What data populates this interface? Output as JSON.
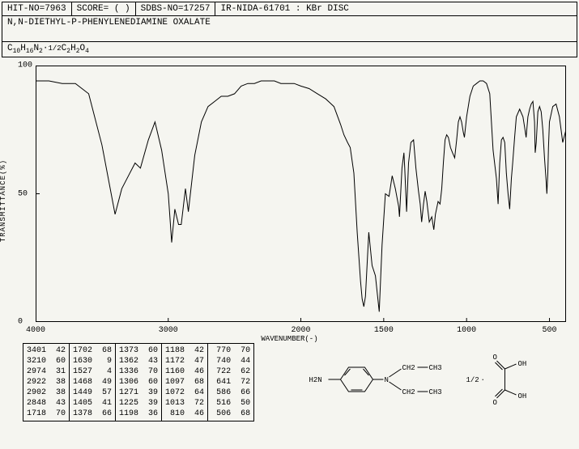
{
  "header": {
    "hit_no": "HIT-NO=7963",
    "score": "SCORE=  (  )",
    "sdbs_no": "SDBS-NO=17257",
    "ir_id": "IR-NIDA-61701 : KBr DISC"
  },
  "compound_name": "N,N-DIETHYL-P-PHENYLENEDIAMINE OXALATE",
  "formula_display": "C10H16N2·1/2C2H2O4",
  "chart": {
    "type": "line",
    "title": "",
    "xlabel": "WAVENUMBER(-)",
    "ylabel": "TRANSMITTANCE(%)",
    "xlim": [
      4000,
      400
    ],
    "ylim": [
      0,
      100
    ],
    "xticks": [
      4000,
      3000,
      2000,
      1500,
      1000,
      500
    ],
    "yticks": [
      0,
      50,
      100
    ],
    "line_color": "#000000",
    "background_color": "#f5f5f0",
    "border_color": "#000000",
    "grid": false,
    "label_fontsize": 9,
    "tick_fontsize": 10,
    "data_xy": [
      [
        4000,
        94
      ],
      [
        3900,
        94
      ],
      [
        3800,
        93
      ],
      [
        3700,
        93
      ],
      [
        3600,
        89
      ],
      [
        3500,
        69
      ],
      [
        3401,
        42
      ],
      [
        3350,
        52
      ],
      [
        3300,
        57
      ],
      [
        3250,
        62
      ],
      [
        3210,
        60
      ],
      [
        3150,
        71
      ],
      [
        3100,
        78
      ],
      [
        3050,
        67
      ],
      [
        3000,
        50
      ],
      [
        2974,
        31
      ],
      [
        2950,
        44
      ],
      [
        2922,
        38
      ],
      [
        2902,
        38
      ],
      [
        2870,
        52
      ],
      [
        2848,
        43
      ],
      [
        2800,
        65
      ],
      [
        2750,
        78
      ],
      [
        2700,
        84
      ],
      [
        2650,
        86
      ],
      [
        2600,
        88
      ],
      [
        2550,
        88
      ],
      [
        2500,
        89
      ],
      [
        2450,
        92
      ],
      [
        2400,
        93
      ],
      [
        2350,
        93
      ],
      [
        2300,
        94
      ],
      [
        2250,
        94
      ],
      [
        2200,
        94
      ],
      [
        2150,
        93
      ],
      [
        2100,
        93
      ],
      [
        2050,
        93
      ],
      [
        2000,
        92
      ],
      [
        1950,
        91
      ],
      [
        1900,
        89
      ],
      [
        1850,
        87
      ],
      [
        1800,
        84
      ],
      [
        1760,
        77
      ],
      [
        1740,
        73
      ],
      [
        1718,
        70
      ],
      [
        1702,
        68
      ],
      [
        1680,
        58
      ],
      [
        1660,
        35
      ],
      [
        1640,
        16
      ],
      [
        1630,
        9
      ],
      [
        1620,
        6
      ],
      [
        1610,
        10
      ],
      [
        1590,
        35
      ],
      [
        1570,
        22
      ],
      [
        1550,
        18
      ],
      [
        1527,
        4
      ],
      [
        1510,
        30
      ],
      [
        1490,
        50
      ],
      [
        1468,
        49
      ],
      [
        1449,
        57
      ],
      [
        1430,
        52
      ],
      [
        1410,
        45
      ],
      [
        1405,
        41
      ],
      [
        1390,
        60
      ],
      [
        1378,
        66
      ],
      [
        1373,
        60
      ],
      [
        1362,
        43
      ],
      [
        1350,
        62
      ],
      [
        1336,
        70
      ],
      [
        1320,
        71
      ],
      [
        1306,
        60
      ],
      [
        1290,
        51
      ],
      [
        1280,
        46
      ],
      [
        1271,
        39
      ],
      [
        1260,
        46
      ],
      [
        1250,
        51
      ],
      [
        1240,
        47
      ],
      [
        1225,
        39
      ],
      [
        1210,
        41
      ],
      [
        1198,
        36
      ],
      [
        1188,
        42
      ],
      [
        1172,
        47
      ],
      [
        1160,
        46
      ],
      [
        1150,
        52
      ],
      [
        1140,
        62
      ],
      [
        1130,
        71
      ],
      [
        1120,
        73
      ],
      [
        1110,
        72
      ],
      [
        1097,
        68
      ],
      [
        1085,
        66
      ],
      [
        1072,
        64
      ],
      [
        1060,
        71
      ],
      [
        1050,
        78
      ],
      [
        1040,
        80
      ],
      [
        1030,
        78
      ],
      [
        1020,
        74
      ],
      [
        1013,
        72
      ],
      [
        1000,
        80
      ],
      [
        980,
        88
      ],
      [
        960,
        92
      ],
      [
        940,
        93
      ],
      [
        920,
        94
      ],
      [
        900,
        94
      ],
      [
        880,
        93
      ],
      [
        860,
        89
      ],
      [
        840,
        67
      ],
      [
        820,
        56
      ],
      [
        810,
        46
      ],
      [
        800,
        62
      ],
      [
        790,
        71
      ],
      [
        780,
        72
      ],
      [
        770,
        70
      ],
      [
        760,
        58
      ],
      [
        750,
        50
      ],
      [
        740,
        44
      ],
      [
        730,
        56
      ],
      [
        722,
        62
      ],
      [
        710,
        72
      ],
      [
        700,
        80
      ],
      [
        680,
        83
      ],
      [
        660,
        80
      ],
      [
        650,
        76
      ],
      [
        641,
        72
      ],
      [
        630,
        80
      ],
      [
        620,
        83
      ],
      [
        610,
        85
      ],
      [
        600,
        86
      ],
      [
        590,
        78
      ],
      [
        586,
        66
      ],
      [
        580,
        70
      ],
      [
        570,
        82
      ],
      [
        560,
        84
      ],
      [
        550,
        82
      ],
      [
        540,
        75
      ],
      [
        530,
        64
      ],
      [
        520,
        55
      ],
      [
        516,
        50
      ],
      [
        510,
        58
      ],
      [
        506,
        68
      ],
      [
        500,
        78
      ],
      [
        480,
        84
      ],
      [
        460,
        85
      ],
      [
        440,
        80
      ],
      [
        420,
        70
      ],
      [
        400,
        75
      ]
    ]
  },
  "peak_table": {
    "columns": [
      [
        [
          "3401",
          "42"
        ],
        [
          "3210",
          "60"
        ],
        [
          "2974",
          "31"
        ],
        [
          "2922",
          "38"
        ],
        [
          "2902",
          "38"
        ],
        [
          "2848",
          "43"
        ],
        [
          "1718",
          "70"
        ]
      ],
      [
        [
          "1702",
          "68"
        ],
        [
          "1630",
          "9"
        ],
        [
          "1527",
          "4"
        ],
        [
          "1468",
          "49"
        ],
        [
          "1449",
          "57"
        ],
        [
          "1405",
          "41"
        ],
        [
          "1378",
          "66"
        ]
      ],
      [
        [
          "1373",
          "60"
        ],
        [
          "1362",
          "43"
        ],
        [
          "1336",
          "70"
        ],
        [
          "1306",
          "60"
        ],
        [
          "1271",
          "39"
        ],
        [
          "1225",
          "39"
        ],
        [
          "1198",
          "36"
        ]
      ],
      [
        [
          "1188",
          "42"
        ],
        [
          "1172",
          "47"
        ],
        [
          "1160",
          "46"
        ],
        [
          "1097",
          "68"
        ],
        [
          "1072",
          "64"
        ],
        [
          "1013",
          "72"
        ],
        [
          "810",
          "46"
        ]
      ],
      [
        [
          "770",
          "70"
        ],
        [
          "740",
          "44"
        ],
        [
          "722",
          "62"
        ],
        [
          "641",
          "72"
        ],
        [
          "586",
          "66"
        ],
        [
          "516",
          "50"
        ],
        [
          "506",
          "68"
        ]
      ]
    ]
  },
  "structure": {
    "label_h2n": "H2N",
    "label_n": "N",
    "label_ch2": "CH2",
    "label_ch3": "CH3",
    "label_half": "1/2",
    "label_oh": "OH",
    "label_o": "O",
    "line_color": "#000000"
  }
}
